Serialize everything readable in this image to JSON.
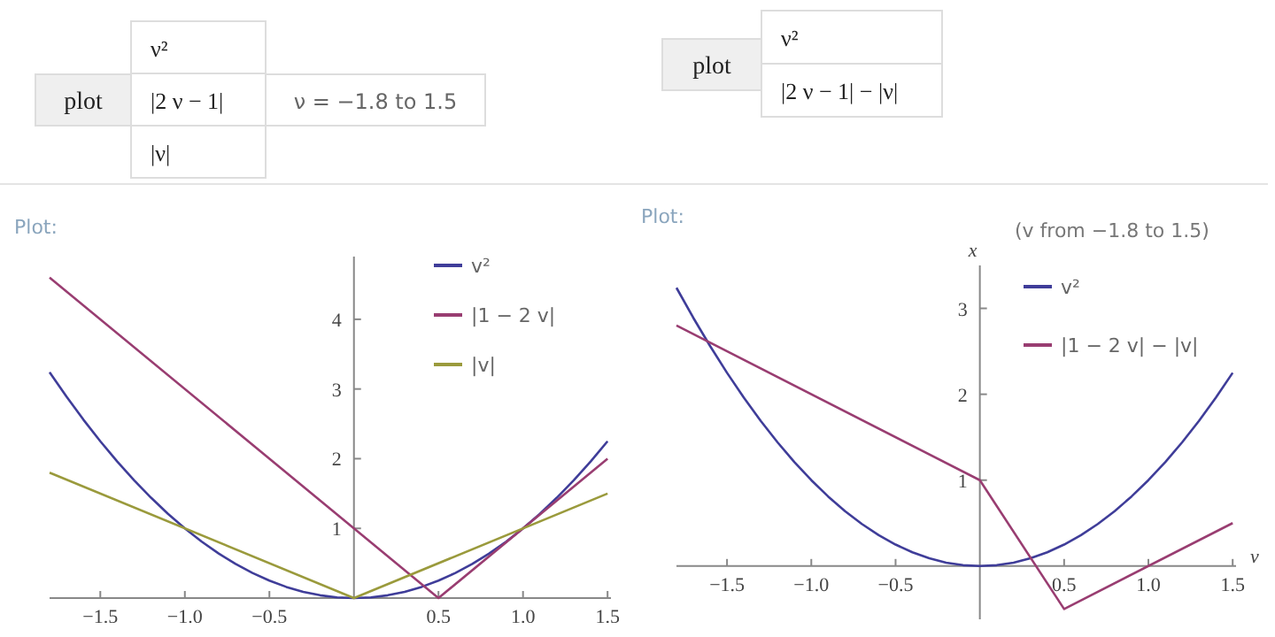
{
  "chart_data": [
    {
      "type": "line",
      "title": "Plot:",
      "annotations": [
        "plot",
        "ν²",
        "|2 ν − 1|",
        "|ν|",
        "ν = −1.8 to 1.5"
      ],
      "x": [
        -1.8,
        -1.7,
        -1.6,
        -1.5,
        -1.4,
        -1.3,
        -1.2,
        -1.1,
        -1,
        -0.9,
        -0.8,
        -0.7,
        -0.6,
        -0.5,
        -0.4,
        -0.3,
        -0.2,
        -0.1,
        0,
        0.1,
        0.2,
        0.3,
        0.4,
        0.5,
        0.6,
        0.7,
        0.8,
        0.9,
        1,
        1.1,
        1.2,
        1.3,
        1.4,
        1.5
      ],
      "series": [
        {
          "name": "v²",
          "color": "#3f3d99",
          "values": [
            3.24,
            2.89,
            2.56,
            2.25,
            1.96,
            1.69,
            1.44,
            1.21,
            1,
            0.81,
            0.64,
            0.49,
            0.36,
            0.25,
            0.16,
            0.09,
            0.04,
            0.01,
            0,
            0.01,
            0.04,
            0.09,
            0.16,
            0.25,
            0.36,
            0.49,
            0.64,
            0.81,
            1,
            1.21,
            1.44,
            1.69,
            1.96,
            2.25
          ]
        },
        {
          "name": "|1 − 2 v|",
          "color": "#993d71",
          "x": [
            -1.8,
            0.5,
            1.5
          ],
          "values": [
            4.6,
            0,
            2
          ]
        },
        {
          "name": "|v|",
          "color": "#9a9a3c",
          "x": [
            -1.8,
            0,
            1.5
          ],
          "values": [
            1.8,
            0,
            1.5
          ]
        }
      ],
      "xlim": [
        -1.8,
        1.52
      ],
      "ylim": [
        0,
        4.9
      ],
      "xticks": [
        {
          "value": -1.5,
          "label": "−1.5"
        },
        {
          "value": -1,
          "label": "−1.0"
        },
        {
          "value": -0.5,
          "label": "−0.5"
        },
        {
          "value": 0.5,
          "label": "0.5"
        },
        {
          "value": 1,
          "label": "1.0"
        },
        {
          "value": 1.5,
          "label": "1.5"
        }
      ],
      "yticks": [
        1,
        2,
        3,
        4
      ],
      "legend": "top right",
      "grid": false,
      "marker": "none",
      "line_style": "solid"
    },
    {
      "type": "line",
      "title": "Plot:",
      "xlabel": "v",
      "ylabel": "x",
      "annotations": [
        "plot",
        "ν²",
        "|2 ν − 1| − |ν|",
        "(v from −1.8 to 1.5)"
      ],
      "x": [
        -1.8,
        -1.7,
        -1.6,
        -1.5,
        -1.4,
        -1.3,
        -1.2,
        -1.1,
        -1,
        -0.9,
        -0.8,
        -0.7,
        -0.6,
        -0.5,
        -0.4,
        -0.3,
        -0.2,
        -0.1,
        0,
        0.1,
        0.2,
        0.3,
        0.4,
        0.5,
        0.6,
        0.7,
        0.8,
        0.9,
        1,
        1.1,
        1.2,
        1.3,
        1.4,
        1.5
      ],
      "series": [
        {
          "name": "v²",
          "color": "#3f3d99",
          "values": [
            3.24,
            2.89,
            2.56,
            2.25,
            1.96,
            1.69,
            1.44,
            1.21,
            1,
            0.81,
            0.64,
            0.49,
            0.36,
            0.25,
            0.16,
            0.09,
            0.04,
            0.01,
            0,
            0.01,
            0.04,
            0.09,
            0.16,
            0.25,
            0.36,
            0.49,
            0.64,
            0.81,
            1,
            1.21,
            1.44,
            1.69,
            1.96,
            2.25
          ]
        },
        {
          "name": "|1 − 2 v| − |v|",
          "color": "#993d71",
          "x": [
            -1.8,
            0,
            0.5,
            1.5
          ],
          "values": [
            2.8,
            1,
            -0.5,
            0.5
          ]
        }
      ],
      "xlim": [
        -1.8,
        1.52
      ],
      "ylim": [
        -0.62,
        3.5
      ],
      "xticks": [
        {
          "value": -1.5,
          "label": "−1.5"
        },
        {
          "value": -1,
          "label": "−1.0"
        },
        {
          "value": -0.5,
          "label": "−0.5"
        },
        {
          "value": 0.5,
          "label": "0.5"
        },
        {
          "value": 1,
          "label": "1.0"
        },
        {
          "value": 1.5,
          "label": "1.5"
        }
      ],
      "yticks": [
        1,
        2,
        3
      ],
      "legend": "top right",
      "grid": false,
      "marker": "none",
      "line_style": "solid"
    }
  ]
}
